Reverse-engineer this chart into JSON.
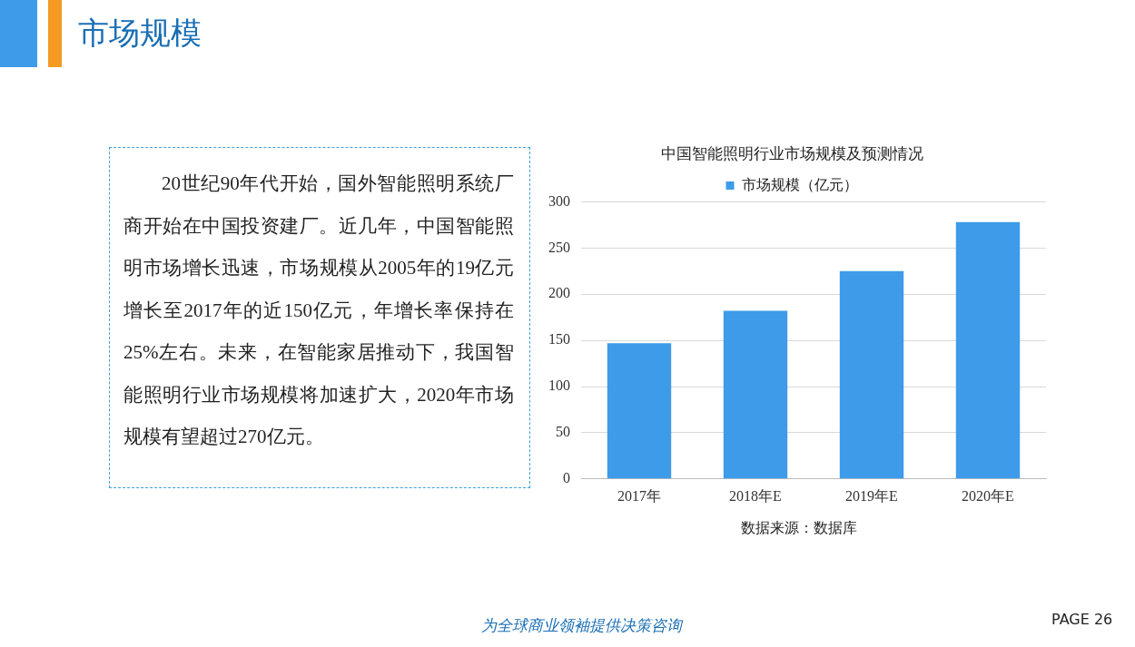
{
  "chart_data": {
    "type": "bar",
    "title": "中国智能照明行业市场规模及预测情况",
    "categories": [
      "2017年",
      "2018年E",
      "2019年E",
      "2020年E"
    ],
    "series": [
      {
        "name": "市场规模（亿元）",
        "color": "#3d9be9",
        "values": [
          147,
          182,
          225,
          278
        ]
      }
    ],
    "ylim": [
      0,
      300
    ],
    "yticks": [
      0,
      50,
      100,
      150,
      200,
      250,
      300
    ],
    "grid": "y",
    "legend": "top",
    "annotations": [
      "市场规模",
      "20世纪90年代开始，国外智能照明系统厂商开始在中国投资建厂。近几年，中国智能照明市场增长迅速，市场规模从2005年的19亿元增长至2017年的近150亿元，年增长率保持在25%左右。未来，在智能家居推动下，我国智能照明行业市场规模将加速扩大，2020年市场规模有望超过270亿元。",
      "数据来源：数据库",
      "为全球商业领袖提供决策咨询",
      "PAGE  26"
    ]
  }
}
